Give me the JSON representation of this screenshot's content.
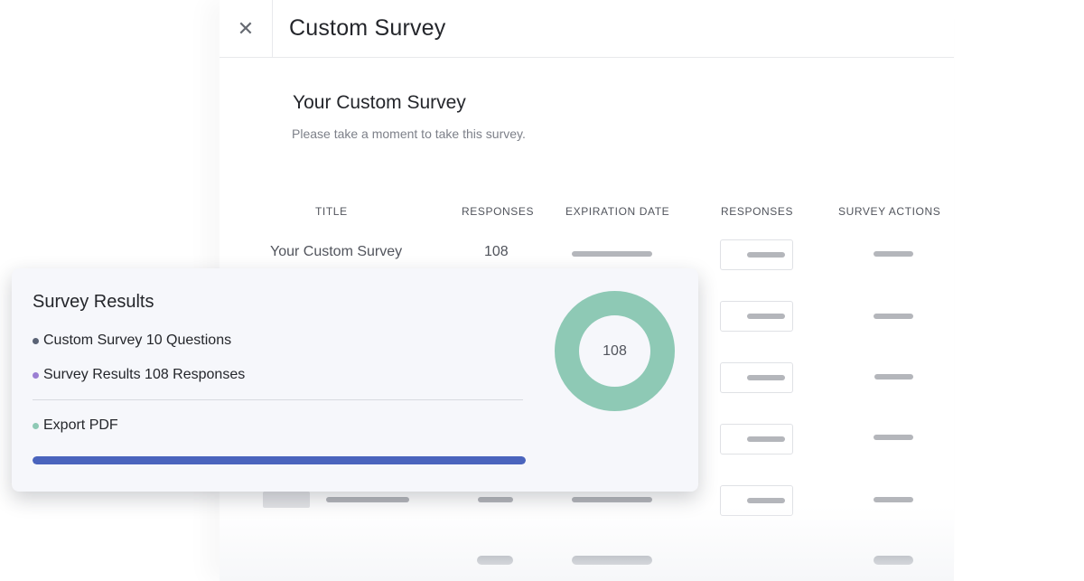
{
  "header": {
    "title": "Custom Survey",
    "close_icon": "close-icon"
  },
  "survey": {
    "heading": "Your Custom Survey",
    "description": "Please take a moment to take this survey."
  },
  "table": {
    "columns": [
      "TITLE",
      "RESPONSES",
      "EXPIRATION DATE",
      "RESPONSES",
      "SURVEY ACTIONS"
    ],
    "first_row": {
      "title": "Your Custom Survey",
      "responses": "108"
    }
  },
  "results_card": {
    "title": "Survey Results",
    "items": [
      {
        "label": "Custom Survey 10 Questions",
        "color": "#5a6375"
      },
      {
        "label": "Survey Results 108 Responses",
        "color": "#9b7fd3"
      },
      {
        "label": "Export PDF",
        "color": "#8ec9b5"
      }
    ],
    "donut_value": "108",
    "donut_color": "#8ec9b5",
    "progress_color": "#4a64bd",
    "progress_fraction": 1.0
  }
}
